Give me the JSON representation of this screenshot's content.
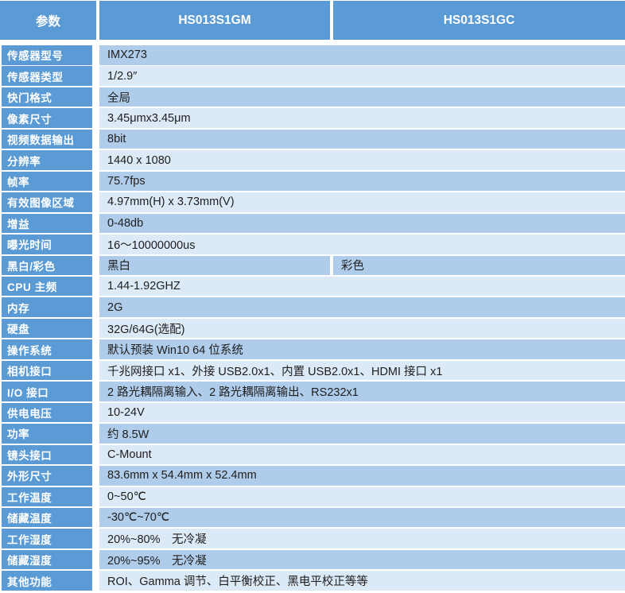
{
  "colors": {
    "header_bg": "#5B9BD5",
    "label_bg": "#5B9BD5",
    "row_dark_bg": "#AFCCEA",
    "row_light_bg": "#DCE9F6",
    "header_text": "#FFFFFF",
    "label_text": "#FFFFFF",
    "value_text": "#202020",
    "gap": "#FFFFFF"
  },
  "header": {
    "param_col": "参数",
    "model_1": "HS013S1GM",
    "model_2": "HS013S1GC"
  },
  "rows": [
    {
      "label": "传感器型号",
      "value": "IMX273",
      "shade": "dark"
    },
    {
      "label": "传感器类型",
      "value": "1/2.9″",
      "shade": "light"
    },
    {
      "label": "快门格式",
      "value": "全局",
      "shade": "dark"
    },
    {
      "label": "像素尺寸",
      "value": "3.45μmx3.45μm",
      "shade": "light"
    },
    {
      "label": "视频数据输出",
      "value": "8bit",
      "shade": "dark"
    },
    {
      "label": "分辨率",
      "value": "1440 x 1080",
      "shade": "light"
    },
    {
      "label": "帧率",
      "value": "75.7fps",
      "shade": "dark"
    },
    {
      "label": "有效图像区域",
      "value": "4.97mm(H) x 3.73mm(V)",
      "shade": "light"
    },
    {
      "label": "增益",
      "value": "0-48db",
      "shade": "dark"
    },
    {
      "label": "曝光时间",
      "value": "16～10000000us",
      "shade": "light"
    },
    {
      "label": "黑白/彩色",
      "value": "黑白",
      "value2": "彩色",
      "split": true,
      "shade": "dark"
    },
    {
      "label": "CPU 主频",
      "value": "1.44-1.92GHZ",
      "shade": "light"
    },
    {
      "label": "内存",
      "value": "2G",
      "shade": "dark"
    },
    {
      "label": "硬盘",
      "value": "32G/64G(选配)",
      "shade": "light"
    },
    {
      "label": "操作系统",
      "value": "默认预装 Win10 64 位系统",
      "shade": "dark"
    },
    {
      "label": "相机接口",
      "value": "千兆网接口 x1、外接 USB2.0x1、内置 USB2.0x1、HDMI 接口 x1",
      "shade": "light"
    },
    {
      "label": "I/O 接口",
      "value": "2 路光耦隔离输入、2 路光耦隔离输出、RS232x1",
      "shade": "dark"
    },
    {
      "label": "供电电压",
      "value": "10-24V",
      "shade": "light"
    },
    {
      "label": "功率",
      "value": "约 8.5W",
      "shade": "dark"
    },
    {
      "label": "镜头接口",
      "value": "C-Mount",
      "shade": "light"
    },
    {
      "label": "外形尺寸",
      "value": "83.6mm x 54.4mm x 52.4mm",
      "shade": "dark"
    },
    {
      "label": "工作温度",
      "value": "0~50℃",
      "shade": "light"
    },
    {
      "label": "储藏温度",
      "value": "-30℃~70℃",
      "shade": "dark"
    },
    {
      "label": "工作湿度",
      "value": "20%~80%　无冷凝",
      "shade": "light"
    },
    {
      "label": "储藏湿度",
      "value": "20%~95%　无冷凝",
      "shade": "dark"
    },
    {
      "label": "其他功能",
      "value": "ROI、Gamma 调节、白平衡校正、黑电平校正等等",
      "shade": "light"
    }
  ]
}
